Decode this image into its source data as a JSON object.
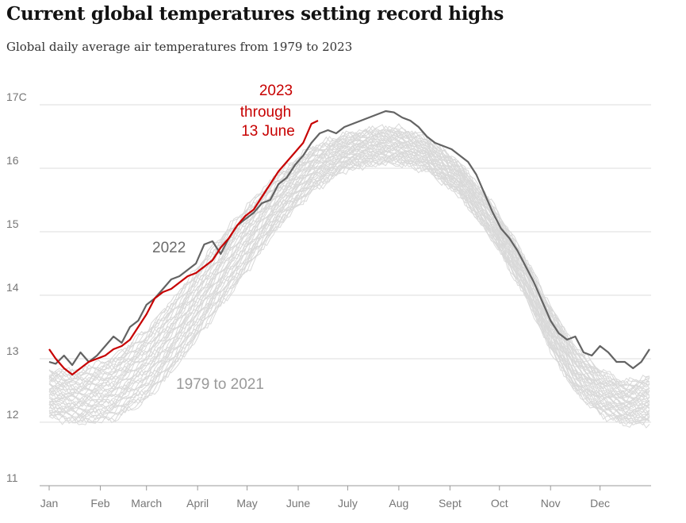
{
  "chart_data": {
    "type": "line",
    "title": "Current global temperatures setting record highs",
    "subtitle": "Global daily average air temperatures from 1979 to 2023",
    "y_tick_labels": [
      "11",
      "12",
      "13",
      "14",
      "15",
      "16",
      "17C"
    ],
    "y_ticks": [
      11,
      12,
      13,
      14,
      15,
      16,
      17
    ],
    "ylim": [
      11,
      17
    ],
    "xlim": [
      1,
      365
    ],
    "x_tick_labels": [
      "Jan",
      "Feb",
      "March",
      "April",
      "May",
      "June",
      "July",
      "Aug",
      "Sept",
      "Oct",
      "Nov",
      "Dec"
    ],
    "x_ticks": [
      1,
      32,
      60,
      91,
      121,
      152,
      182,
      213,
      244,
      274,
      305,
      335
    ],
    "colors": {
      "highlight": "#c70000",
      "reference": "#636363",
      "background": "#d9d9d9",
      "grid": "#dcdcdc"
    },
    "annotations": {
      "y2023_year": "2023",
      "y2023_note1": "through",
      "y2023_note2": "13 June",
      "y2022": "2022",
      "background_range": "1979 to 2021"
    },
    "background_band": {
      "name": "1979 to 2021",
      "x": [
        1,
        20,
        40,
        60,
        80,
        100,
        121,
        140,
        160,
        180,
        200,
        213,
        230,
        250,
        270,
        290,
        305,
        320,
        335,
        350,
        365
      ],
      "low": [
        12.05,
        11.95,
        12.0,
        12.3,
        12.9,
        13.6,
        14.35,
        15.05,
        15.6,
        15.95,
        16.05,
        16.05,
        15.95,
        15.55,
        14.85,
        13.95,
        13.1,
        12.45,
        12.1,
        11.95,
        11.95
      ],
      "high": [
        12.85,
        12.85,
        13.05,
        13.5,
        14.1,
        14.8,
        15.45,
        15.95,
        16.35,
        16.55,
        16.65,
        16.65,
        16.5,
        16.1,
        15.45,
        14.6,
        13.85,
        13.2,
        12.85,
        12.65,
        12.75
      ]
    },
    "series": [
      {
        "name": "2022",
        "x": [
          1,
          5,
          10,
          15,
          20,
          25,
          30,
          35,
          40,
          45,
          50,
          55,
          60,
          65,
          70,
          75,
          80,
          85,
          90,
          95,
          100,
          105,
          110,
          115,
          120,
          125,
          130,
          135,
          140,
          145,
          150,
          155,
          160,
          165,
          170,
          175,
          180,
          185,
          190,
          195,
          200,
          205,
          210,
          215,
          220,
          225,
          230,
          235,
          240,
          245,
          250,
          255,
          260,
          265,
          270,
          275,
          280,
          285,
          290,
          295,
          300,
          305,
          310,
          315,
          320,
          325,
          330,
          335,
          340,
          345,
          350,
          355,
          360,
          365
        ],
        "y": [
          12.95,
          12.92,
          13.05,
          12.9,
          13.1,
          12.95,
          13.05,
          13.2,
          13.35,
          13.25,
          13.5,
          13.6,
          13.85,
          13.95,
          14.1,
          14.25,
          14.3,
          14.4,
          14.5,
          14.8,
          14.85,
          14.65,
          14.9,
          15.1,
          15.2,
          15.3,
          15.45,
          15.5,
          15.75,
          15.85,
          16.05,
          16.2,
          16.4,
          16.55,
          16.6,
          16.55,
          16.65,
          16.7,
          16.75,
          16.8,
          16.85,
          16.9,
          16.88,
          16.8,
          16.75,
          16.65,
          16.5,
          16.4,
          16.35,
          16.3,
          16.2,
          16.1,
          15.9,
          15.6,
          15.3,
          15.05,
          14.9,
          14.7,
          14.45,
          14.2,
          13.9,
          13.6,
          13.4,
          13.3,
          13.35,
          13.1,
          13.05,
          13.2,
          13.1,
          12.95,
          12.95,
          12.85,
          12.95,
          13.15
        ]
      },
      {
        "name": "2023",
        "x": [
          1,
          5,
          10,
          15,
          20,
          25,
          30,
          35,
          40,
          45,
          50,
          55,
          60,
          65,
          70,
          75,
          80,
          85,
          90,
          95,
          100,
          105,
          110,
          115,
          120,
          125,
          130,
          135,
          140,
          145,
          150,
          155,
          160,
          164
        ],
        "y": [
          13.15,
          13.0,
          12.85,
          12.75,
          12.85,
          12.95,
          13.0,
          13.05,
          13.15,
          13.2,
          13.3,
          13.5,
          13.7,
          13.95,
          14.05,
          14.1,
          14.2,
          14.3,
          14.35,
          14.45,
          14.55,
          14.75,
          14.9,
          15.1,
          15.25,
          15.35,
          15.55,
          15.75,
          15.95,
          16.1,
          16.25,
          16.4,
          16.7,
          16.75
        ]
      }
    ]
  }
}
